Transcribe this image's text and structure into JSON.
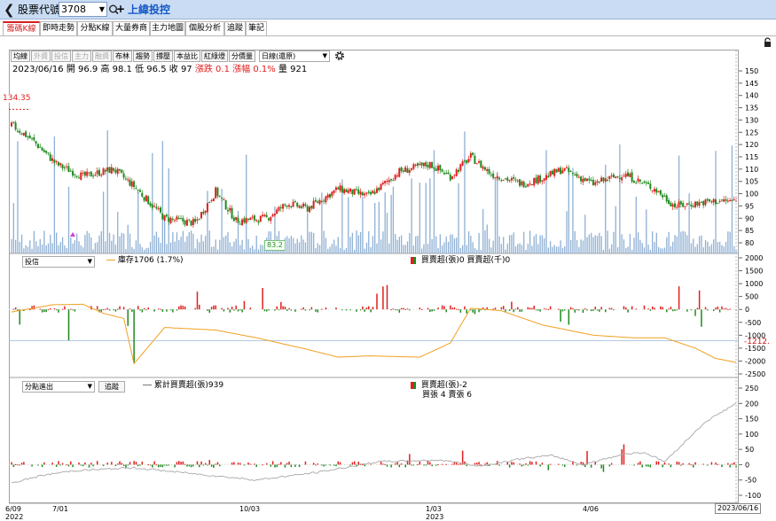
{
  "topbar": {
    "back": "❮",
    "title": "股票代號",
    "stock_code": "3708",
    "dropdown_arrow": "▼",
    "plus": "+",
    "company": "上緯投控"
  },
  "tabs": [
    "籌碼K線",
    "即時走勢",
    "分點K線",
    "大量券商",
    "主力地圖",
    "個股分析",
    "追蹤",
    "筆記"
  ],
  "toolbar": {
    "buttons": [
      "均線",
      "外資",
      "投信",
      "主力",
      "融資",
      "布林",
      "趨勢",
      "撐壓",
      "本益比",
      "紅綠燈",
      "分價量"
    ],
    "disabled": [
      false,
      true,
      true,
      true,
      true,
      false,
      false,
      false,
      false,
      false,
      false
    ],
    "period": "日線(還原)",
    "period_arrow": "▼"
  },
  "ohlc": {
    "date": "2023/06/16",
    "open_label": "開",
    "open": "96.9",
    "high_label": "高",
    "high": "98.1",
    "low_label": "低",
    "low": "96.5",
    "close_label": "收",
    "close": "97",
    "change_label": "漲跌",
    "change": "0.1",
    "pct_label": "漲幅",
    "pct": "0.1%",
    "vol_label": "量",
    "vol": "921"
  },
  "price_axis": {
    "ticks": [
      "150",
      "145",
      "140",
      "135",
      "130",
      "125",
      "120",
      "115",
      "110",
      "105",
      "100",
      "95",
      "90",
      "85",
      "80"
    ],
    "high_tag": "134.35",
    "low_tag": "83.2"
  },
  "panel2": {
    "select": "投信",
    "select_arrow": "▼",
    "legend_line": "庫存1706 (1.7%)",
    "legend_bar": "買賣超(張)0 買賣超(千)0",
    "ticks": [
      "2000",
      "1500",
      "1000",
      "500",
      "0",
      "-500",
      "-1000",
      "-1500",
      "-2000",
      "-2500"
    ],
    "right_tag": "-1212."
  },
  "panel3": {
    "select": "分點進出",
    "select_arrow": "▼",
    "track_btn": "追蹤",
    "legend_line": "累計買賣超(張)939",
    "legend_bar": "買賣超(張)-2",
    "legend_sub": "買張 4 賣張 6",
    "ticks": [
      "250",
      "200",
      "150",
      "100",
      "50",
      "0",
      "-50",
      "-100"
    ]
  },
  "xaxis": [
    {
      "label": "6/09",
      "year": "2022"
    },
    {
      "label": "7/01",
      "year": ""
    },
    {
      "label": "10/03",
      "year": ""
    },
    {
      "label": "1/03",
      "year": "2023"
    },
    {
      "label": "4/06",
      "year": ""
    }
  ],
  "last_date": "2023/06/16",
  "colors": {
    "up": "#e02020",
    "down": "#1f8a1f",
    "volume": "#8fb0d4",
    "holding_line": "#f0a020",
    "cum_line": "#a8a8a8",
    "accent": "#1458c4"
  },
  "chart_data": {
    "type": "candlestick",
    "price_anchors_days": [
      0,
      10,
      22,
      35,
      50,
      60,
      75,
      90,
      100,
      110,
      125,
      135,
      145,
      160,
      175,
      190,
      205,
      215,
      225,
      235,
      250,
      262,
      270,
      285,
      300,
      315,
      325,
      335,
      345,
      355
    ],
    "price_anchors_values": [
      128,
      122,
      112,
      107,
      110,
      103,
      90,
      88,
      101,
      89,
      90,
      96,
      94,
      102,
      99,
      109,
      112,
      107,
      115,
      108,
      104,
      107,
      110,
      104,
      108,
      102,
      95,
      96,
      97,
      97
    ],
    "inst_holding_anchors_days": [
      0,
      20,
      35,
      45,
      55,
      60,
      75,
      100,
      120,
      145,
      160,
      175,
      200,
      215,
      225,
      240,
      260,
      285,
      305,
      320,
      335,
      345,
      355
    ],
    "inst_holding_anchors_values": [
      -100,
      180,
      200,
      -150,
      -350,
      -2100,
      -700,
      -800,
      -1100,
      -1550,
      -1850,
      -1800,
      -1850,
      -1300,
      50,
      -50,
      -600,
      -1000,
      -1100,
      -1100,
      -1500,
      -1900,
      -2050
    ],
    "cum_anchors_days": [
      0,
      15,
      30,
      60,
      90,
      120,
      150,
      180,
      210,
      230,
      250,
      265,
      280,
      300,
      310,
      320,
      340,
      355
    ],
    "cum_anchors_values": [
      -60,
      -35,
      -20,
      -10,
      -30,
      -50,
      -25,
      10,
      15,
      -5,
      20,
      30,
      0,
      35,
      40,
      10,
      140,
      200
    ],
    "total_days": 356
  }
}
